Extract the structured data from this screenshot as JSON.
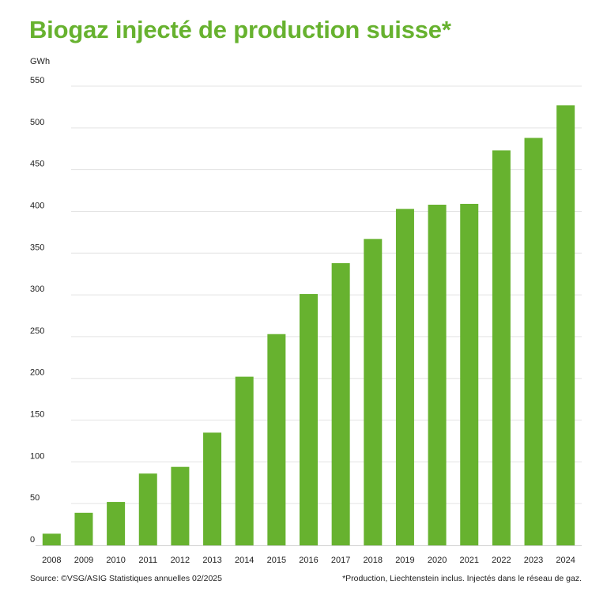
{
  "title": "Biogaz injecté de production suisse*",
  "unit_label": "GWh",
  "source": "Source: ©VSG/ASIG Statistiques annuelles 02/2025",
  "footnote": "*Production, Liechtenstein inclus. Injectés dans le réseau de gaz.",
  "colors": {
    "bar": "#67b22f",
    "title": "#67b22f",
    "grid": "#e3e3e3",
    "text": "#222222"
  },
  "chart_data": {
    "type": "bar",
    "title": "Biogaz injecté de production suisse*",
    "ylabel": "GWh",
    "xlabel": "",
    "categories": [
      "2008",
      "2009",
      "2010",
      "2011",
      "2012",
      "2013",
      "2014",
      "2015",
      "2016",
      "2017",
      "2018",
      "2019",
      "2020",
      "2021",
      "2022",
      "2023",
      "2024"
    ],
    "values": [
      14,
      39,
      52,
      86,
      94,
      135,
      202,
      253,
      301,
      338,
      367,
      403,
      408,
      409,
      473,
      488,
      527
    ],
    "ylim": [
      0,
      550
    ],
    "yticks": [
      0,
      50,
      100,
      150,
      200,
      250,
      300,
      350,
      400,
      450,
      500,
      550
    ],
    "grid": true,
    "legend": "none"
  }
}
